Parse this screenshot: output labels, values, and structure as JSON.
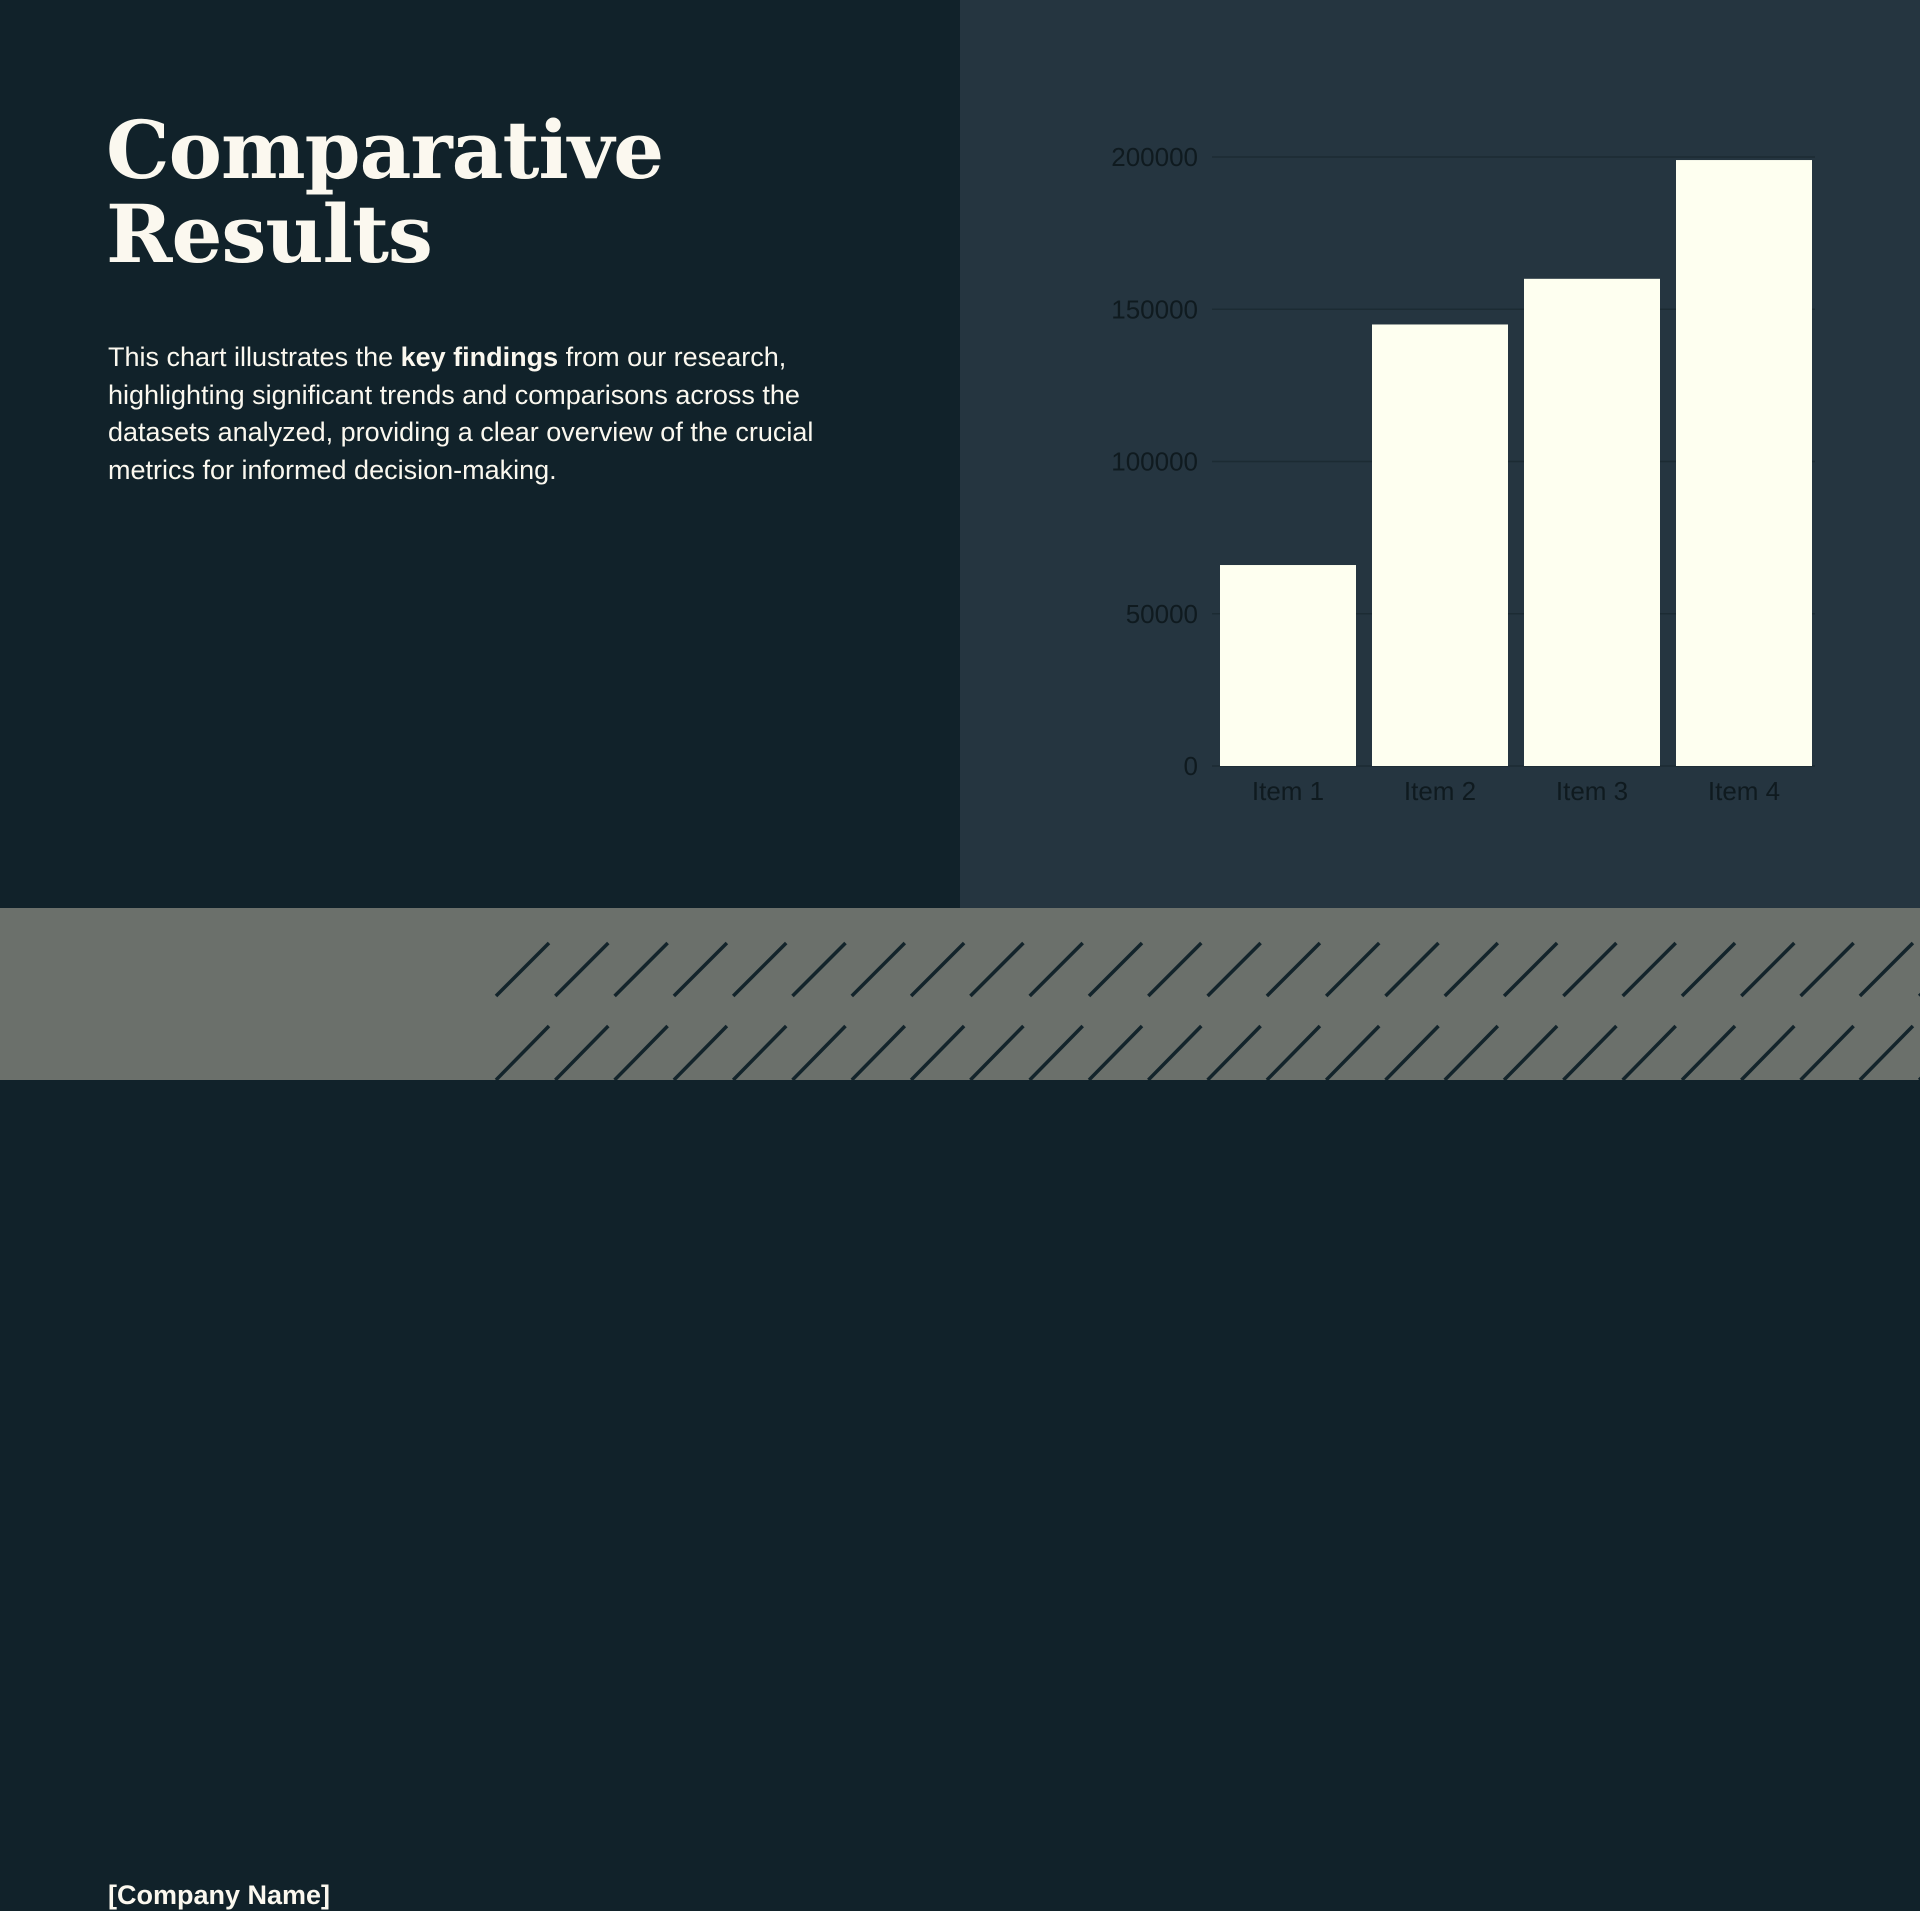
{
  "slide": {
    "title_line1": "Comparative",
    "title_line2": "Results",
    "description_pre": "This chart illustrates the ",
    "description_bold": "key findings",
    "description_post": " from our research, highlighting significant trends and comparisons across the datasets analyzed, providing a clear overview of the crucial metrics for informed decision-making.",
    "company": "[Company Name]"
  },
  "colors": {
    "left_bg": "#11222a",
    "right_bg": "#253540",
    "footer_bg": "#6b706b",
    "bar": "#fefff0",
    "text": "#fbf8ef",
    "hatch": "#13242b",
    "tick_label": "#0f1a1f"
  },
  "chart_data": {
    "type": "bar",
    "categories": [
      "Item 1",
      "Item 2",
      "Item 3",
      "Item 4"
    ],
    "values": [
      66000,
      145000,
      160000,
      199000
    ],
    "ylim": [
      0,
      200000
    ],
    "yticks": [
      0,
      50000,
      100000,
      150000,
      200000
    ],
    "grid": true,
    "legend": "none",
    "title": "",
    "xlabel": "",
    "ylabel": ""
  }
}
